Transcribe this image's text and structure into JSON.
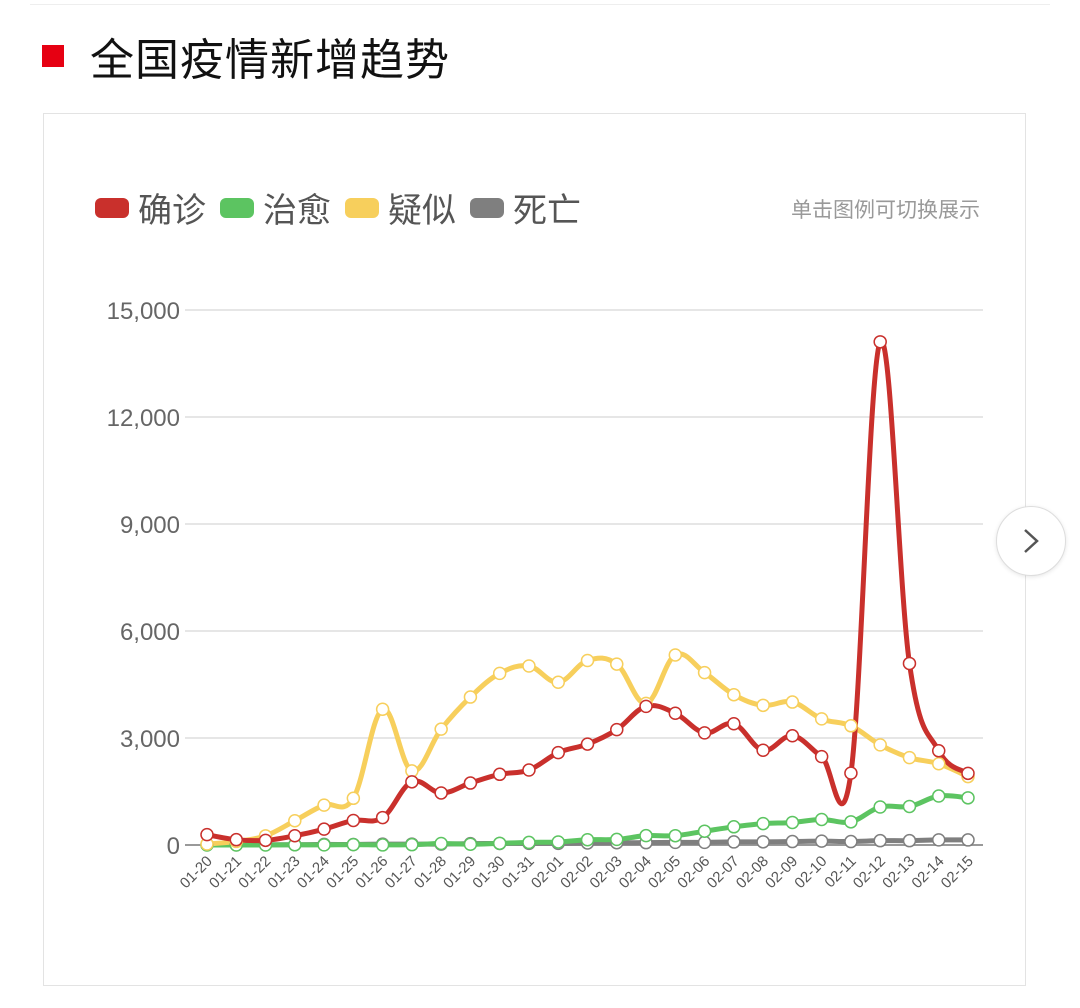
{
  "header": {
    "title": "全国疫情新增趋势",
    "accent_color": "#e60012"
  },
  "legend_hint": "单击图例可切换展示",
  "next_button": {
    "icon": "chevron-right-icon"
  },
  "chart_data": {
    "type": "line",
    "smooth": true,
    "title": "",
    "xlabel": "",
    "ylabel": "",
    "ylim": [
      0,
      15000
    ],
    "yticks": [
      0,
      3000,
      6000,
      9000,
      12000,
      15000
    ],
    "ytick_labels": [
      "0",
      "3,000",
      "6,000",
      "9,000",
      "12,000",
      "15,000"
    ],
    "grid": true,
    "legend_position": "top-left",
    "x": [
      "01-20",
      "01-21",
      "01-22",
      "01-23",
      "01-24",
      "01-25",
      "01-26",
      "01-27",
      "01-28",
      "01-29",
      "01-30",
      "01-31",
      "02-01",
      "02-02",
      "02-03",
      "02-04",
      "02-05",
      "02-06",
      "02-07",
      "02-08",
      "02-09",
      "02-10",
      "02-11",
      "02-12",
      "02-13",
      "02-14",
      "02-15"
    ],
    "series": [
      {
        "name": "确诊",
        "color": "#c9302c",
        "values": [
          291,
          149,
          131,
          259,
          444,
          688,
          769,
          1771,
          1459,
          1737,
          1982,
          2102,
          2590,
          2829,
          3235,
          3887,
          3694,
          3143,
          3399,
          2656,
          3062,
          2478,
          2015,
          14108,
          5090,
          2641,
          2009
        ]
      },
      {
        "name": "治愈",
        "color": "#5cc461",
        "values": [
          0,
          0,
          0,
          6,
          3,
          11,
          2,
          9,
          43,
          21,
          47,
          72,
          85,
          147,
          157,
          262,
          261,
          387,
          510,
          600,
          632,
          716,
          650,
          1065,
          1081,
          1373,
          1323
        ]
      },
      {
        "name": "疑似",
        "color": "#f7cf5c",
        "values": [
          27,
          100,
          257,
          680,
          1118,
          1309,
          3806,
          2077,
          3248,
          4148,
          4812,
          5019,
          4562,
          5173,
          5072,
          3971,
          5328,
          4833,
          4214,
          3916,
          4008,
          3536,
          3342,
          2807,
          2450,
          2277,
          1918
        ]
      },
      {
        "name": "死亡",
        "color": "#7f7f7f",
        "values": [
          6,
          3,
          8,
          8,
          16,
          15,
          24,
          26,
          26,
          38,
          43,
          46,
          45,
          57,
          64,
          65,
          73,
          73,
          86,
          89,
          97,
          108,
          97,
          121,
          121,
          143,
          142
        ]
      }
    ]
  }
}
